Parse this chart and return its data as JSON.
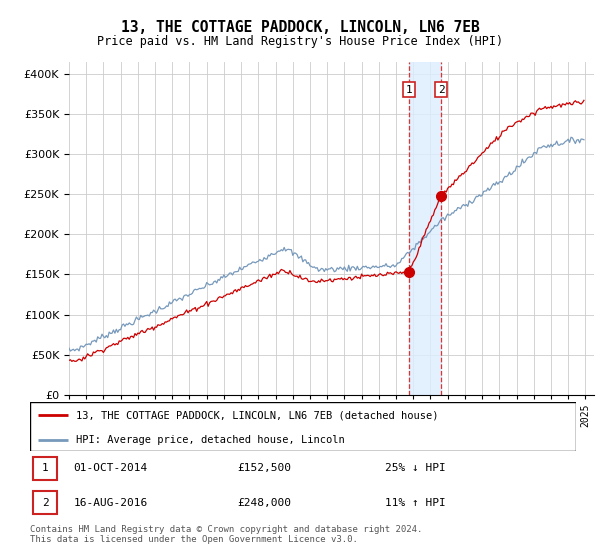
{
  "title": "13, THE COTTAGE PADDOCK, LINCOLN, LN6 7EB",
  "subtitle": "Price paid vs. HM Land Registry's House Price Index (HPI)",
  "ytick_values": [
    0,
    50000,
    100000,
    150000,
    200000,
    250000,
    300000,
    350000,
    400000
  ],
  "ylim": [
    0,
    415000
  ],
  "xlim_start": 1995.0,
  "xlim_end": 2025.5,
  "transaction1_x": 2014.75,
  "transaction1_y": 152500,
  "transaction2_x": 2016.62,
  "transaction2_y": 248000,
  "vline_color": "#dd3333",
  "shade_color": "#ddeeff",
  "legend_line1": "13, THE COTTAGE PADDOCK, LINCOLN, LN6 7EB (detached house)",
  "legend_line2": "HPI: Average price, detached house, Lincoln",
  "annotation1_date": "01-OCT-2014",
  "annotation1_price": "£152,500",
  "annotation1_hpi": "25% ↓ HPI",
  "annotation2_date": "16-AUG-2016",
  "annotation2_price": "£248,000",
  "annotation2_hpi": "11% ↑ HPI",
  "footer": "Contains HM Land Registry data © Crown copyright and database right 2024.\nThis data is licensed under the Open Government Licence v3.0.",
  "red_line_color": "#cc0000",
  "blue_line_color": "#7799bb",
  "box_edge_color": "#cc2222"
}
